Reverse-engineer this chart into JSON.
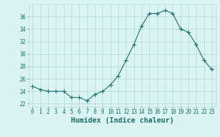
{
  "x": [
    0,
    1,
    2,
    3,
    4,
    5,
    6,
    7,
    8,
    9,
    10,
    11,
    12,
    13,
    14,
    15,
    16,
    17,
    18,
    19,
    20,
    21,
    22,
    23
  ],
  "y": [
    24.8,
    24.3,
    24.0,
    24.0,
    24.0,
    23.0,
    23.0,
    22.5,
    23.5,
    24.0,
    25.0,
    26.5,
    29.0,
    31.5,
    34.5,
    36.5,
    36.5,
    37.0,
    36.5,
    34.0,
    33.5,
    31.5,
    29.0,
    27.5
  ],
  "line_color": "#1a6b6b",
  "marker": "+",
  "marker_size": 4,
  "bg_color": "#daf4f4",
  "grid_color": "#b8d8d8",
  "xlabel": "Humidex (Indice chaleur)",
  "xlim": [
    -0.5,
    23.5
  ],
  "ylim": [
    21.5,
    38.0
  ],
  "yticks": [
    22,
    24,
    26,
    28,
    30,
    32,
    34,
    36
  ],
  "xticks": [
    0,
    1,
    2,
    3,
    4,
    5,
    6,
    7,
    8,
    9,
    10,
    11,
    12,
    13,
    14,
    15,
    16,
    17,
    18,
    19,
    20,
    21,
    22,
    23
  ],
  "xtick_labels": [
    "0",
    "1",
    "2",
    "3",
    "4",
    "5",
    "6",
    "7",
    "8",
    "9",
    "10",
    "11",
    "12",
    "13",
    "14",
    "15",
    "16",
    "17",
    "18",
    "19",
    "20",
    "21",
    "22",
    "23"
  ],
  "tick_color": "#1a6b6b",
  "xlabel_fontsize": 7.5,
  "tick_fontsize": 5.5,
  "linewidth": 0.8,
  "markeredgewidth": 0.8
}
